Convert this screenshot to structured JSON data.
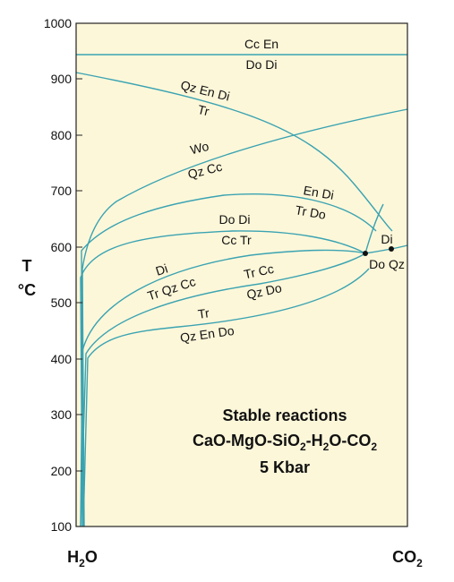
{
  "chart_data": {
    "type": "phase-diagram",
    "ylabel": "T",
    "yunit": "°C",
    "ylim": [
      100,
      1000
    ],
    "yticks": [
      "100",
      "200",
      "300",
      "400",
      "500",
      "600",
      "700",
      "800",
      "900",
      "1000"
    ],
    "x_left_label": {
      "pre": "H",
      "sub": "2",
      "post": "O"
    },
    "x_right_label": {
      "pre": "CO",
      "sub": "2",
      "post": ""
    },
    "title": {
      "line1": "Stable reactions",
      "line2_parts": [
        "CaO-MgO-SiO",
        "2",
        "-H",
        "2",
        "O-CO",
        "2"
      ],
      "line3": "5 Kbar"
    },
    "reactions": [
      {
        "top": "Cc En",
        "bottom": "Do Di"
      },
      {
        "top": "Qz En Di",
        "bottom": "Tr"
      },
      {
        "top": "Wo",
        "bottom": "Qz Cc"
      },
      {
        "top": "En Di",
        "bottom": "Tr Do"
      },
      {
        "top": "Do Di",
        "bottom": "Cc Tr"
      },
      {
        "top": "Di",
        "bottom": "Tr Qz Cc"
      },
      {
        "top": "Tr Cc",
        "bottom": "Qz Do"
      },
      {
        "top": "Tr",
        "bottom": "Qz En Do"
      },
      {
        "top": "Di",
        "bottom": "Do Qz"
      }
    ],
    "invariant_points": 2,
    "colors": {
      "background": "#fdf7d9",
      "curve": "#3aa3b2",
      "frame": "#222222"
    }
  }
}
